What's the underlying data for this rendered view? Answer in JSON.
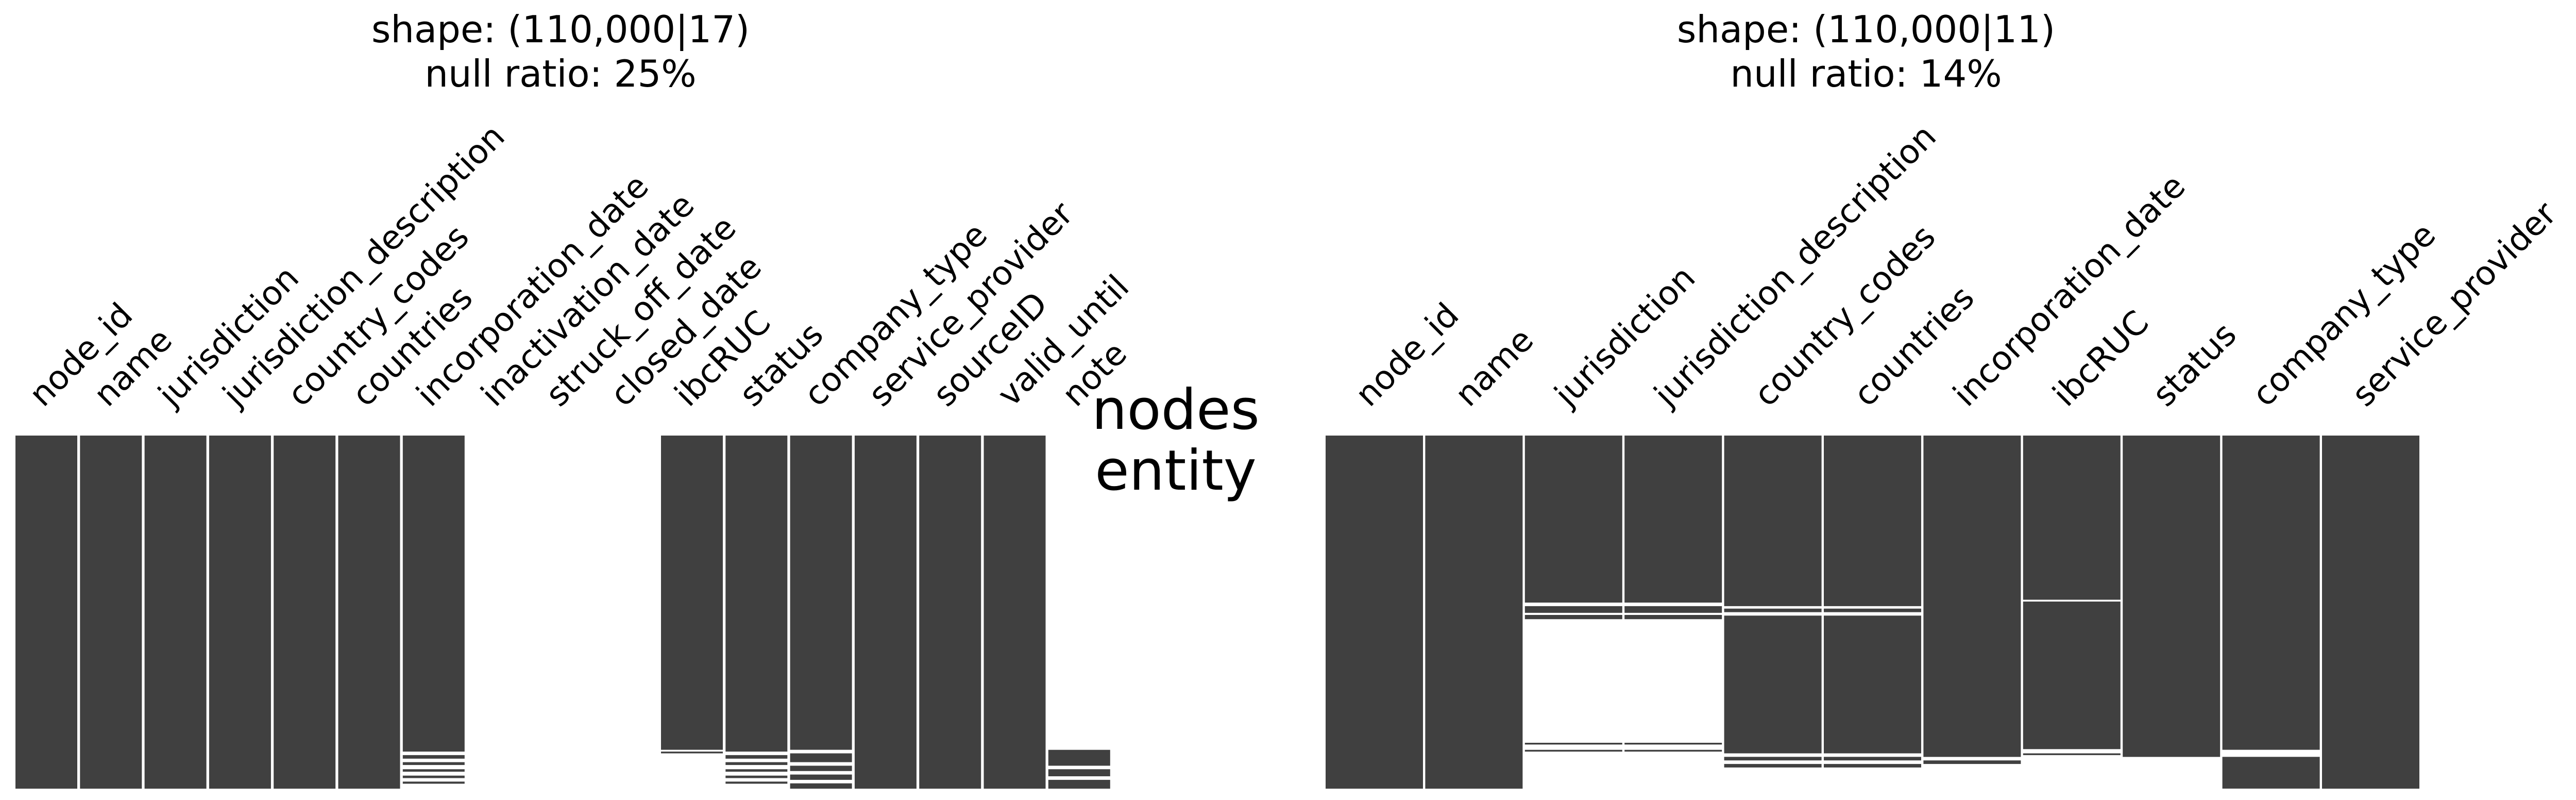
{
  "center_label": {
    "line1": "nodes",
    "line2": "entity"
  },
  "colors": {
    "bar": "#404040",
    "background": "#ffffff",
    "gap_line": "#ffffff"
  },
  "chart_data": [
    {
      "type": "missingness-matrix",
      "title_line1": "shape: (110,000|17)",
      "title_line2": "null ratio: 25%",
      "rows": 110000,
      "columns": [
        {
          "name": "node_id",
          "segments": [
            [
              0,
              1
            ]
          ]
        },
        {
          "name": "name",
          "segments": [
            [
              0,
              1
            ]
          ]
        },
        {
          "name": "jurisdiction",
          "segments": [
            [
              0,
              1
            ]
          ]
        },
        {
          "name": "jurisdiction_description",
          "segments": [
            [
              0,
              1
            ]
          ]
        },
        {
          "name": "country_codes",
          "segments": [
            [
              0,
              1
            ]
          ]
        },
        {
          "name": "countries",
          "segments": [
            [
              0,
              1
            ]
          ]
        },
        {
          "name": "incorporation_date",
          "segments": [
            [
              0,
              0.895
            ],
            [
              0.905,
              0.915
            ],
            [
              0.925,
              0.933
            ],
            [
              0.945,
              0.952
            ],
            [
              0.963,
              0.97
            ],
            [
              0.98,
              0.986
            ]
          ]
        },
        {
          "name": "inactivation_date",
          "segments": []
        },
        {
          "name": "struck_off_date",
          "segments": []
        },
        {
          "name": "closed_date",
          "segments": []
        },
        {
          "name": "ibcRUC",
          "segments": [
            [
              0,
              0.89
            ],
            [
              0.895,
              0.9
            ]
          ]
        },
        {
          "name": "status",
          "segments": [
            [
              0,
              0.895
            ],
            [
              0.905,
              0.915
            ],
            [
              0.925,
              0.933
            ],
            [
              0.945,
              0.952
            ],
            [
              0.963,
              0.97
            ],
            [
              0.98,
              0.986
            ]
          ]
        },
        {
          "name": "company_type",
          "segments": [
            [
              0,
              0.89
            ],
            [
              0.9,
              0.925
            ],
            [
              0.935,
              0.95
            ],
            [
              0.96,
              0.975
            ],
            [
              0.985,
              1
            ]
          ]
        },
        {
          "name": "service_provider",
          "segments": [
            [
              0,
              1
            ]
          ]
        },
        {
          "name": "sourceID",
          "segments": [
            [
              0,
              1
            ]
          ]
        },
        {
          "name": "valid_until",
          "segments": [
            [
              0,
              1
            ]
          ]
        },
        {
          "name": "note",
          "segments": [
            [
              0.89,
              0.935
            ],
            [
              0.945,
              0.965
            ],
            [
              0.975,
              1
            ]
          ]
        }
      ]
    },
    {
      "type": "missingness-matrix",
      "title_line1": "shape: (110,000|11)",
      "title_line2": "null ratio: 14%",
      "rows": 110000,
      "columns": [
        {
          "name": "node_id",
          "segments": [
            [
              0,
              1
            ]
          ]
        },
        {
          "name": "name",
          "segments": [
            [
              0,
              1
            ]
          ]
        },
        {
          "name": "jurisdiction",
          "segments": [
            [
              0,
              0.473
            ],
            [
              0.483,
              0.502
            ],
            [
              0.508,
              0.52
            ],
            [
              0.87,
              0.875
            ],
            [
              0.89,
              0.895
            ]
          ]
        },
        {
          "name": "jurisdiction_description",
          "segments": [
            [
              0,
              0.473
            ],
            [
              0.483,
              0.502
            ],
            [
              0.508,
              0.52
            ],
            [
              0.87,
              0.875
            ],
            [
              0.89,
              0.895
            ]
          ]
        },
        {
          "name": "country_codes",
          "segments": [
            [
              0,
              0.483
            ],
            [
              0.49,
              0.5
            ],
            [
              0.51,
              0.9
            ],
            [
              0.91,
              0.92
            ],
            [
              0.93,
              0.94
            ]
          ]
        },
        {
          "name": "countries",
          "segments": [
            [
              0,
              0.483
            ],
            [
              0.49,
              0.5
            ],
            [
              0.51,
              0.9
            ],
            [
              0.91,
              0.92
            ],
            [
              0.93,
              0.94
            ]
          ]
        },
        {
          "name": "incorporation_date",
          "segments": [
            [
              0,
              0.91
            ],
            [
              0.92,
              0.93
            ]
          ]
        },
        {
          "name": "ibcRUC",
          "segments": [
            [
              0,
              0.465
            ],
            [
              0.47,
              0.888
            ],
            [
              0.9,
              0.905
            ]
          ]
        },
        {
          "name": "status",
          "segments": [
            [
              0,
              0.91
            ]
          ]
        },
        {
          "name": "company_type",
          "segments": [
            [
              0,
              0.89
            ],
            [
              0.91,
              1
            ]
          ]
        },
        {
          "name": "service_provider",
          "segments": [
            [
              0,
              1
            ]
          ]
        }
      ]
    }
  ]
}
